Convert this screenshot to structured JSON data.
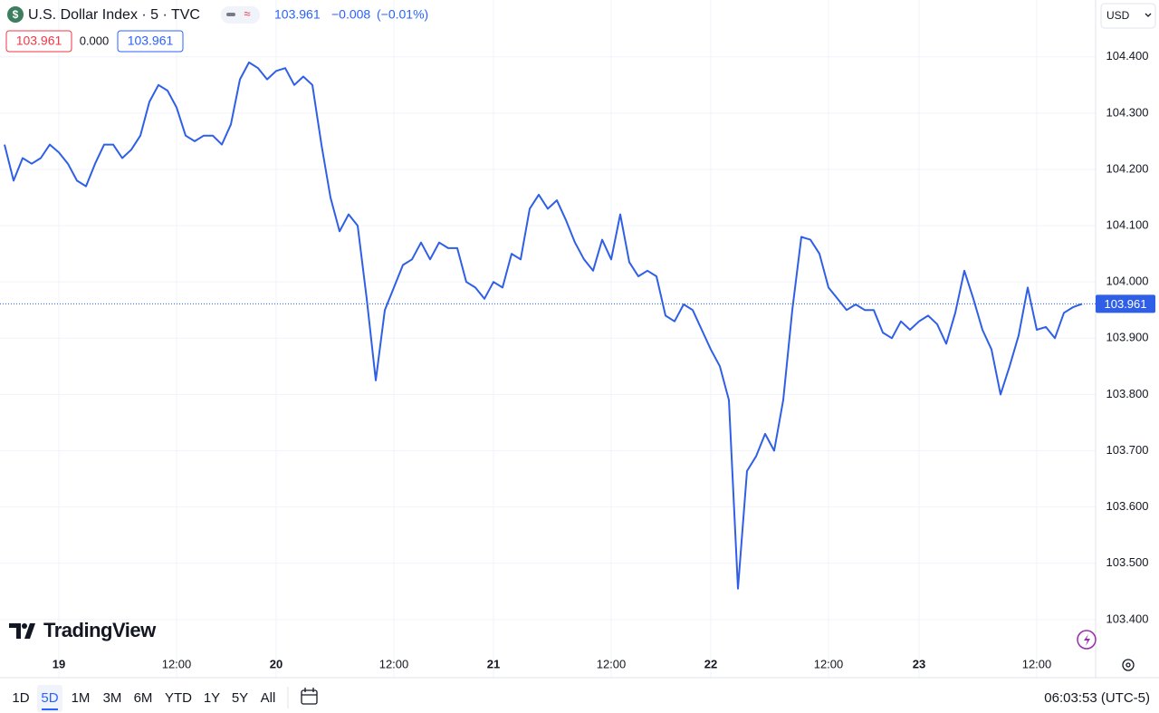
{
  "chart_data": {
    "type": "line",
    "title": "U.S. Dollar Index · 5 · TVC",
    "last_price": 103.961,
    "change": "−0.008",
    "change_percent": "(−0.01%)",
    "legend_values": [
      "103.961",
      "0.000",
      "103.961"
    ],
    "color": "#2f5fe6",
    "grid": true,
    "categories": [
      null,
      null,
      null,
      null,
      null,
      null,
      "19",
      null,
      null,
      null,
      null,
      null,
      null,
      null,
      null,
      null,
      null,
      null,
      null,
      "12:00",
      null,
      null,
      null,
      null,
      null,
      null,
      null,
      null,
      null,
      null,
      "20",
      null,
      null,
      null,
      null,
      null,
      null,
      null,
      null,
      null,
      null,
      null,
      null,
      "12:00",
      null,
      null,
      null,
      null,
      null,
      null,
      null,
      null,
      null,
      null,
      "21",
      null,
      null,
      null,
      null,
      null,
      null,
      null,
      null,
      null,
      null,
      null,
      null,
      "12:00",
      null,
      null,
      null,
      null,
      null,
      null,
      null,
      null,
      null,
      null,
      "22",
      null,
      null,
      null,
      null,
      null,
      null,
      null,
      null,
      null,
      null,
      null,
      null,
      "12:00",
      null,
      null,
      null,
      null,
      null,
      null,
      null,
      null,
      null,
      "23",
      null,
      null,
      null,
      null,
      null,
      null,
      null,
      null,
      null,
      null,
      null,
      null,
      "12:00",
      null,
      null,
      null,
      null,
      null
    ],
    "values": [
      104.244,
      104.18,
      104.22,
      104.21,
      104.22,
      104.244,
      104.23,
      104.21,
      104.18,
      104.17,
      104.21,
      104.244,
      104.244,
      104.22,
      104.235,
      104.26,
      104.32,
      104.35,
      104.34,
      104.31,
      104.26,
      104.25,
      104.26,
      104.26,
      104.244,
      104.28,
      104.36,
      104.39,
      104.38,
      104.36,
      104.375,
      104.38,
      104.35,
      104.365,
      104.35,
      104.244,
      104.15,
      104.09,
      104.12,
      104.1,
      103.97,
      103.825,
      103.95,
      103.99,
      104.03,
      104.04,
      104.07,
      104.04,
      104.07,
      104.06,
      104.06,
      104.0,
      103.99,
      103.97,
      104.0,
      103.99,
      104.05,
      104.04,
      104.13,
      104.155,
      104.13,
      104.145,
      104.11,
      104.07,
      104.04,
      104.02,
      104.075,
      104.04,
      104.12,
      104.035,
      104.01,
      104.02,
      104.01,
      103.94,
      103.93,
      103.96,
      103.95,
      103.915,
      103.88,
      103.85,
      103.79,
      103.455,
      103.664,
      103.69,
      103.73,
      103.7,
      103.79,
      103.95,
      104.08,
      104.075,
      104.05,
      103.99,
      103.97,
      103.95,
      103.96,
      103.95,
      103.95,
      103.91,
      103.9,
      103.93,
      103.915,
      103.93,
      103.94,
      103.925,
      103.89,
      103.945,
      104.02,
      103.97,
      103.915,
      103.88,
      103.8,
      103.85,
      103.905,
      103.99,
      103.915,
      103.92,
      103.9,
      103.945,
      103.955,
      103.961
    ],
    "ylim": [
      103.345,
      104.501
    ],
    "yticks": [
      {
        "value": 103.4,
        "label": "103.400"
      },
      {
        "value": 103.5,
        "label": "103.500"
      },
      {
        "value": 103.6,
        "label": "103.600"
      },
      {
        "value": 103.7,
        "label": "103.700"
      },
      {
        "value": 103.8,
        "label": "103.800"
      },
      {
        "value": 103.9,
        "label": "103.900"
      },
      {
        "value": 104.0,
        "label": "104.000"
      },
      {
        "value": 104.1,
        "label": "104.100"
      },
      {
        "value": 104.2,
        "label": "104.200"
      },
      {
        "value": 104.3,
        "label": "104.300"
      },
      {
        "value": 104.4,
        "label": "104.400"
      }
    ]
  },
  "toolbar": {
    "currency": "USD",
    "brand": "TradingView",
    "ranges": [
      "1D",
      "5D",
      "1M",
      "3M",
      "6M",
      "YTD",
      "1Y",
      "5Y",
      "All"
    ],
    "active_range": "5D",
    "clock": "06:03:53 (UTC-5)"
  }
}
